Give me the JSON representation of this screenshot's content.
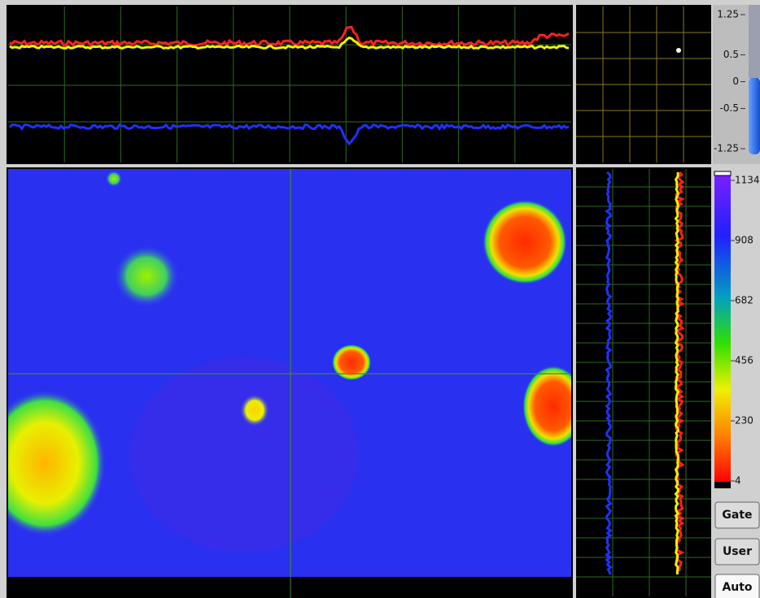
{
  "amplitude_scale": {
    "ticks": [
      1.25,
      0.5,
      0,
      -0.5,
      -1.25
    ],
    "range": [
      1.25,
      -1.25
    ]
  },
  "color_scale": {
    "ticks": [
      1134,
      908,
      682,
      456,
      230,
      4
    ],
    "range": [
      1134,
      4
    ]
  },
  "buttons": [
    "Gate",
    "User",
    "Auto"
  ]
}
